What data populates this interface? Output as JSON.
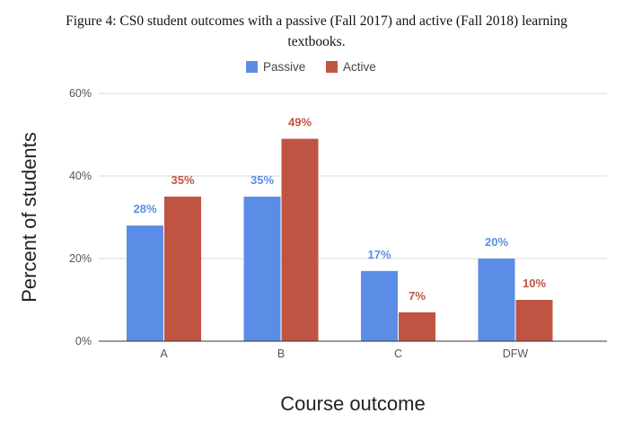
{
  "caption": {
    "line1": "Figure 4: CS0 student outcomes with a passive (Fall 2017) and active (Fall 2018) learning",
    "line2": "textbooks."
  },
  "chart_data": {
    "type": "bar",
    "categories": [
      "A",
      "B",
      "C",
      "DFW"
    ],
    "series": [
      {
        "name": "Passive",
        "color": "#5b8de6",
        "values": [
          28,
          35,
          17,
          20
        ],
        "labels": [
          "28%",
          "35%",
          "17%",
          "20%"
        ]
      },
      {
        "name": "Active",
        "color": "#bf5443",
        "values": [
          35,
          49,
          7,
          10
        ],
        "labels": [
          "35%",
          "49%",
          "7%",
          "10%"
        ]
      }
    ],
    "title": "",
    "xlabel": "Course outcome",
    "ylabel": "Percent of students",
    "ylim": [
      0,
      60
    ],
    "yticks": [
      0,
      20,
      40,
      60
    ],
    "ytick_labels": [
      "0%",
      "20%",
      "40%",
      "60%"
    ],
    "grid": true,
    "legend_position": "top"
  }
}
